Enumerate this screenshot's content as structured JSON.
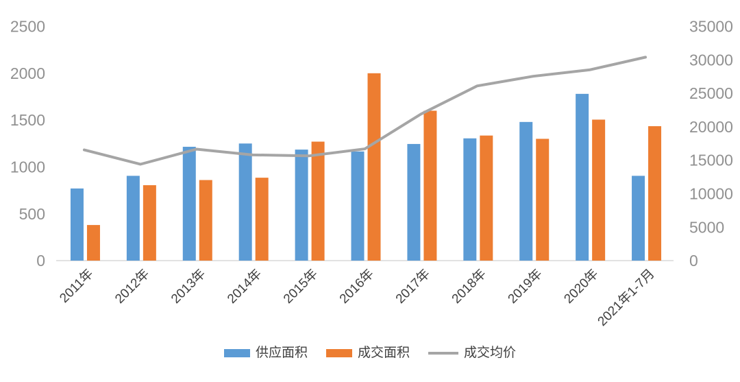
{
  "chart_data": {
    "type": "bar",
    "subtype": "grouped-bars-with-line-dual-axis",
    "title": "",
    "categories": [
      "2011年",
      "2012年",
      "2013年",
      "2014年",
      "2015年",
      "2016年",
      "2017年",
      "2018年",
      "2019年",
      "2020年",
      "2021年1-7月"
    ],
    "series": [
      {
        "name": "供应面积",
        "type": "bar",
        "axis": "left",
        "color": "#5B9BD5",
        "values": [
          770,
          905,
          1215,
          1250,
          1185,
          1165,
          1245,
          1305,
          1480,
          1780,
          905
        ]
      },
      {
        "name": "成交面积",
        "type": "bar",
        "axis": "left",
        "color": "#ED7D31",
        "values": [
          380,
          805,
          860,
          885,
          1270,
          2000,
          1600,
          1335,
          1300,
          1505,
          1435
        ]
      },
      {
        "name": "成交均价",
        "type": "line",
        "axis": "right",
        "color": "#A5A5A5",
        "values": [
          16550,
          14400,
          16650,
          15800,
          15650,
          16700,
          21900,
          26100,
          27550,
          28500,
          30400
        ]
      }
    ],
    "left_axis": {
      "min": 0,
      "max": 2500,
      "step": 500,
      "tick_labels": [
        "0",
        "500",
        "1000",
        "1500",
        "2000",
        "2500"
      ]
    },
    "right_axis": {
      "min": 0,
      "max": 35000,
      "step": 5000,
      "tick_labels": [
        "0",
        "5000",
        "10000",
        "15000",
        "20000",
        "25000",
        "30000",
        "35000"
      ]
    },
    "grid": false,
    "legend_position": "bottom",
    "background": "#FFFFFF"
  },
  "legend": {
    "items": [
      {
        "label": "供应面积",
        "marker": "rect",
        "color": "#5B9BD5"
      },
      {
        "label": "成交面积",
        "marker": "rect",
        "color": "#ED7D31"
      },
      {
        "label": "成交均价",
        "marker": "line",
        "color": "#A5A5A5"
      }
    ]
  },
  "styles": {
    "axis_text_color": "#909090",
    "category_text_color": "#404040",
    "legend_text_color": "#404040",
    "axis_line_color": "#D9D9D9"
  }
}
